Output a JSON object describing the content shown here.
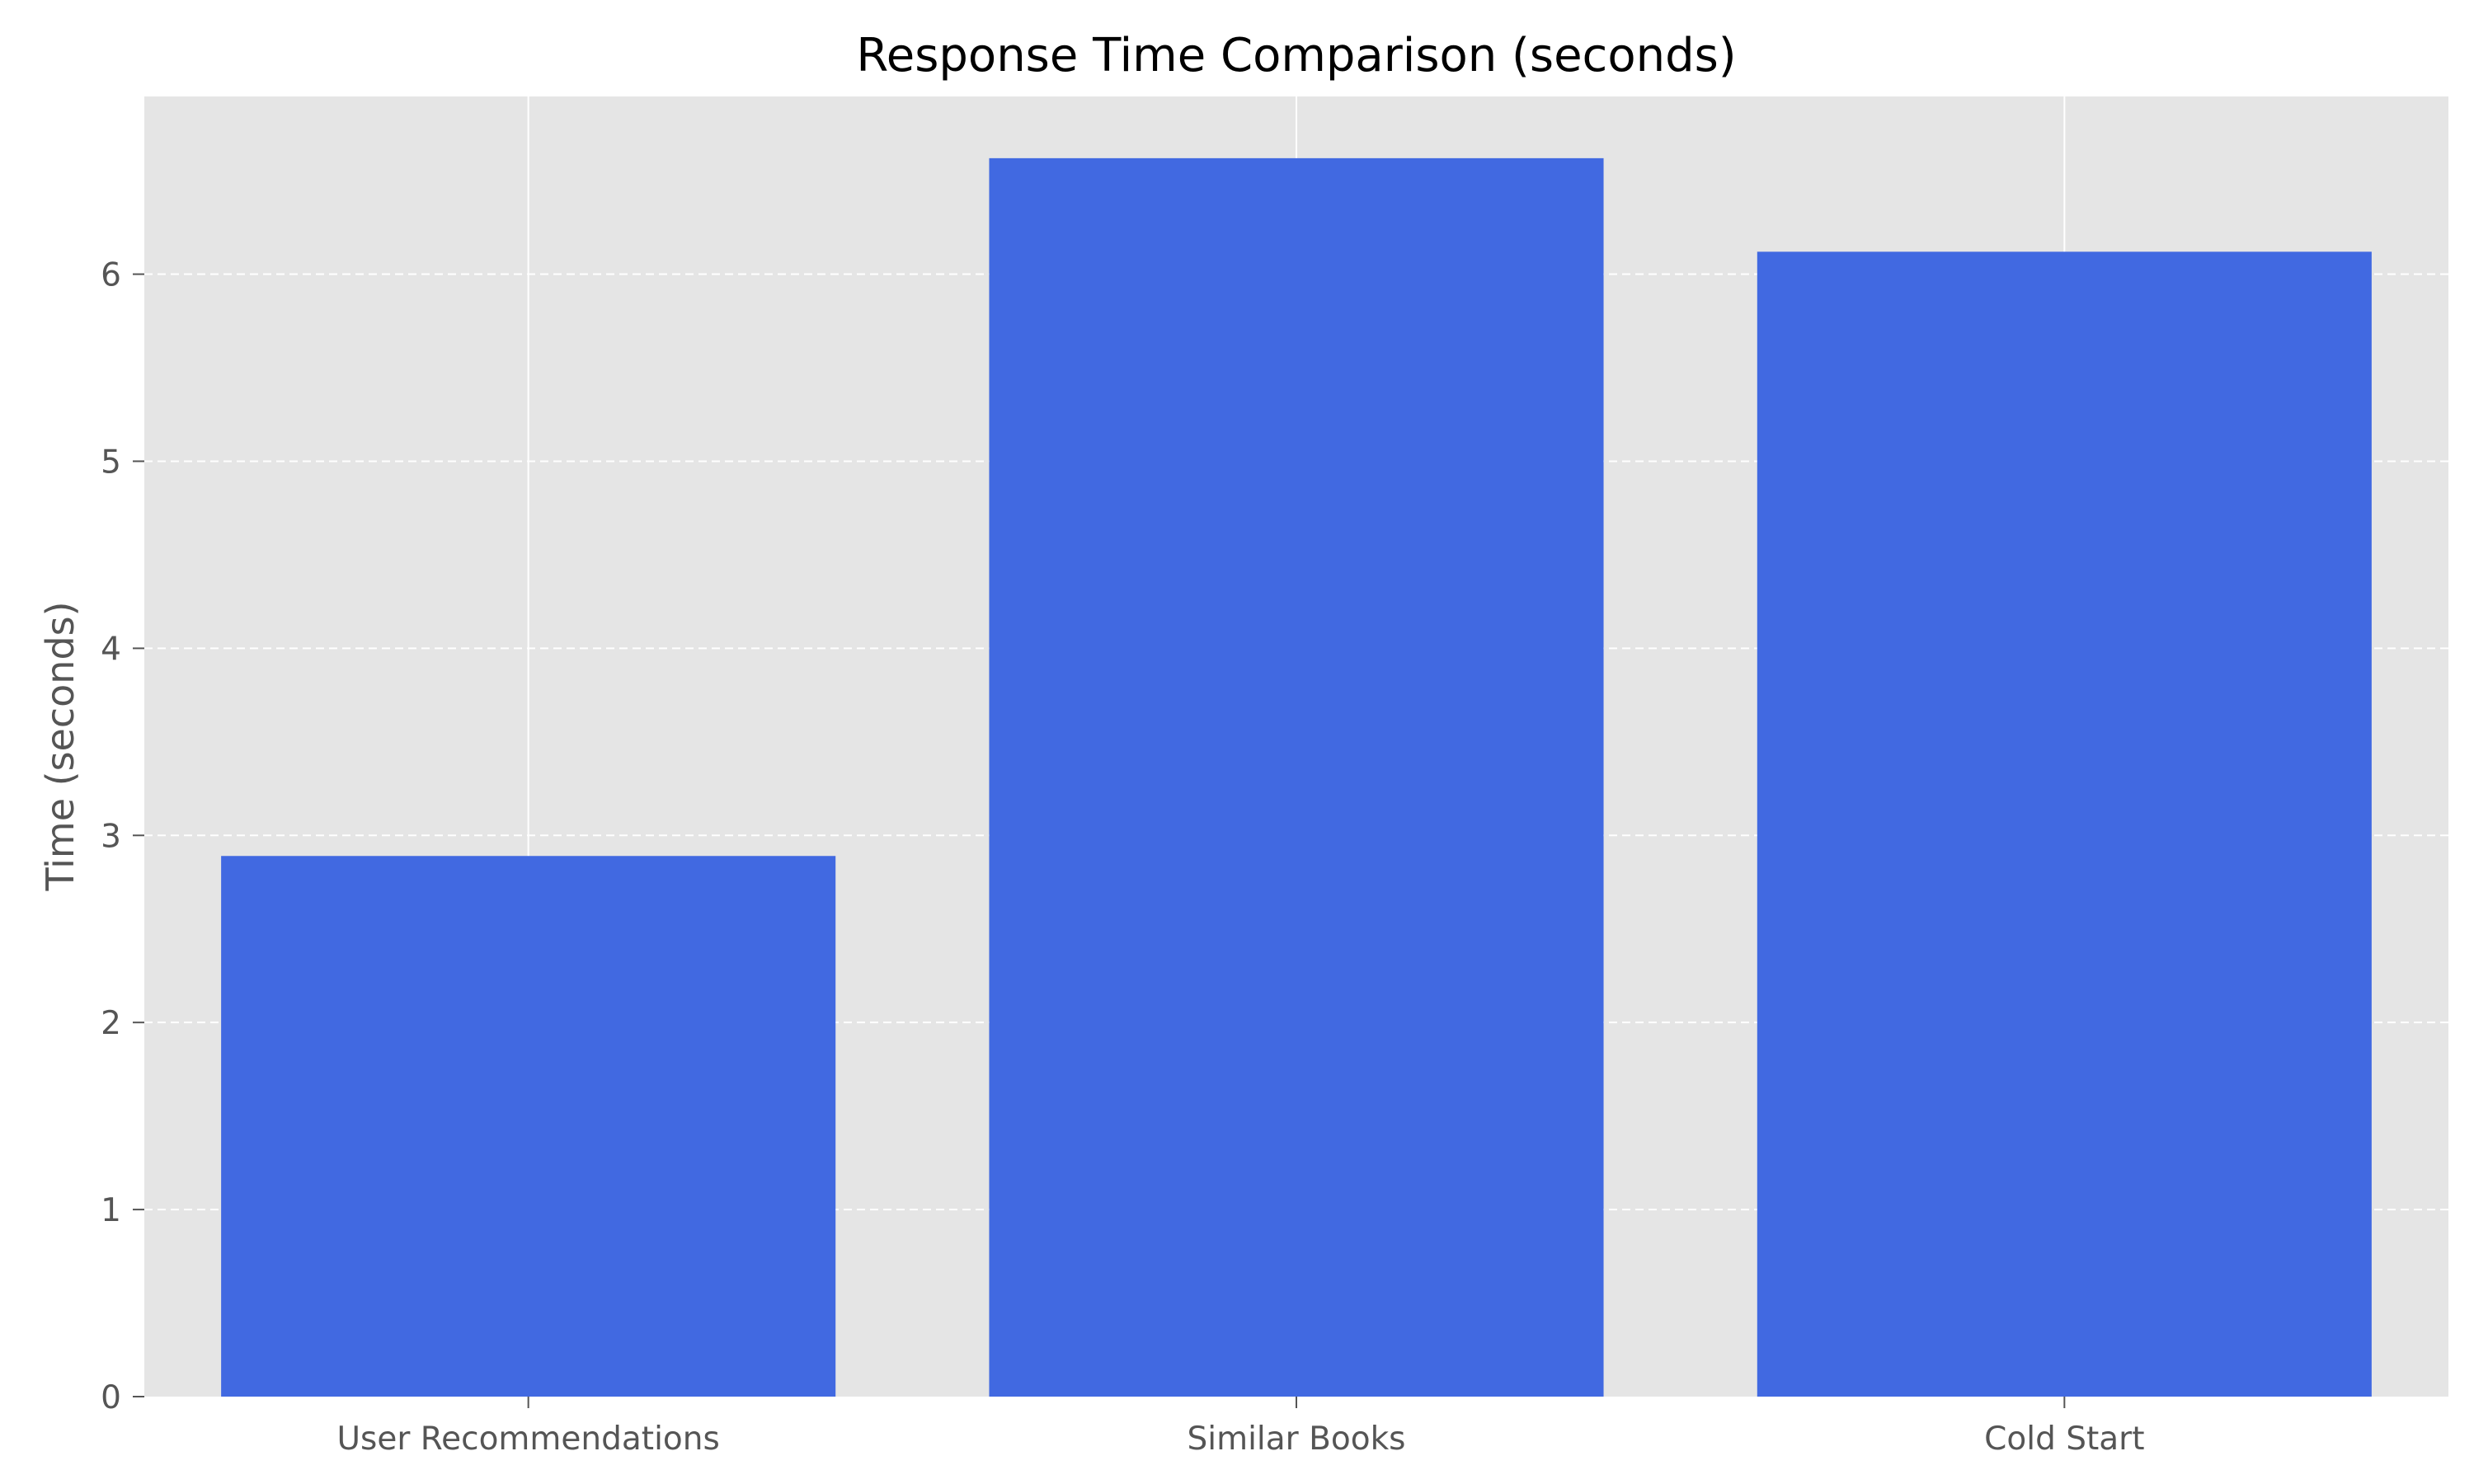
{
  "chart_data": {
    "type": "bar",
    "title": "Response Time Comparison (seconds)",
    "xlabel": "",
    "ylabel": "Time (seconds)",
    "categories": [
      "User Recommendations",
      "Similar Books",
      "Cold Start"
    ],
    "values": [
      2.89,
      6.62,
      6.12
    ],
    "ylim": [
      0,
      6.95
    ],
    "yticks": [
      0,
      1,
      2,
      3,
      4,
      5,
      6
    ],
    "grid": {
      "y": "dashed",
      "x": "solid"
    },
    "colors": {
      "bar": "#4169E1",
      "plot_background": "#E5E5E5",
      "grid": "#FFFFFF",
      "text": "#555555",
      "title": "#000000"
    }
  }
}
